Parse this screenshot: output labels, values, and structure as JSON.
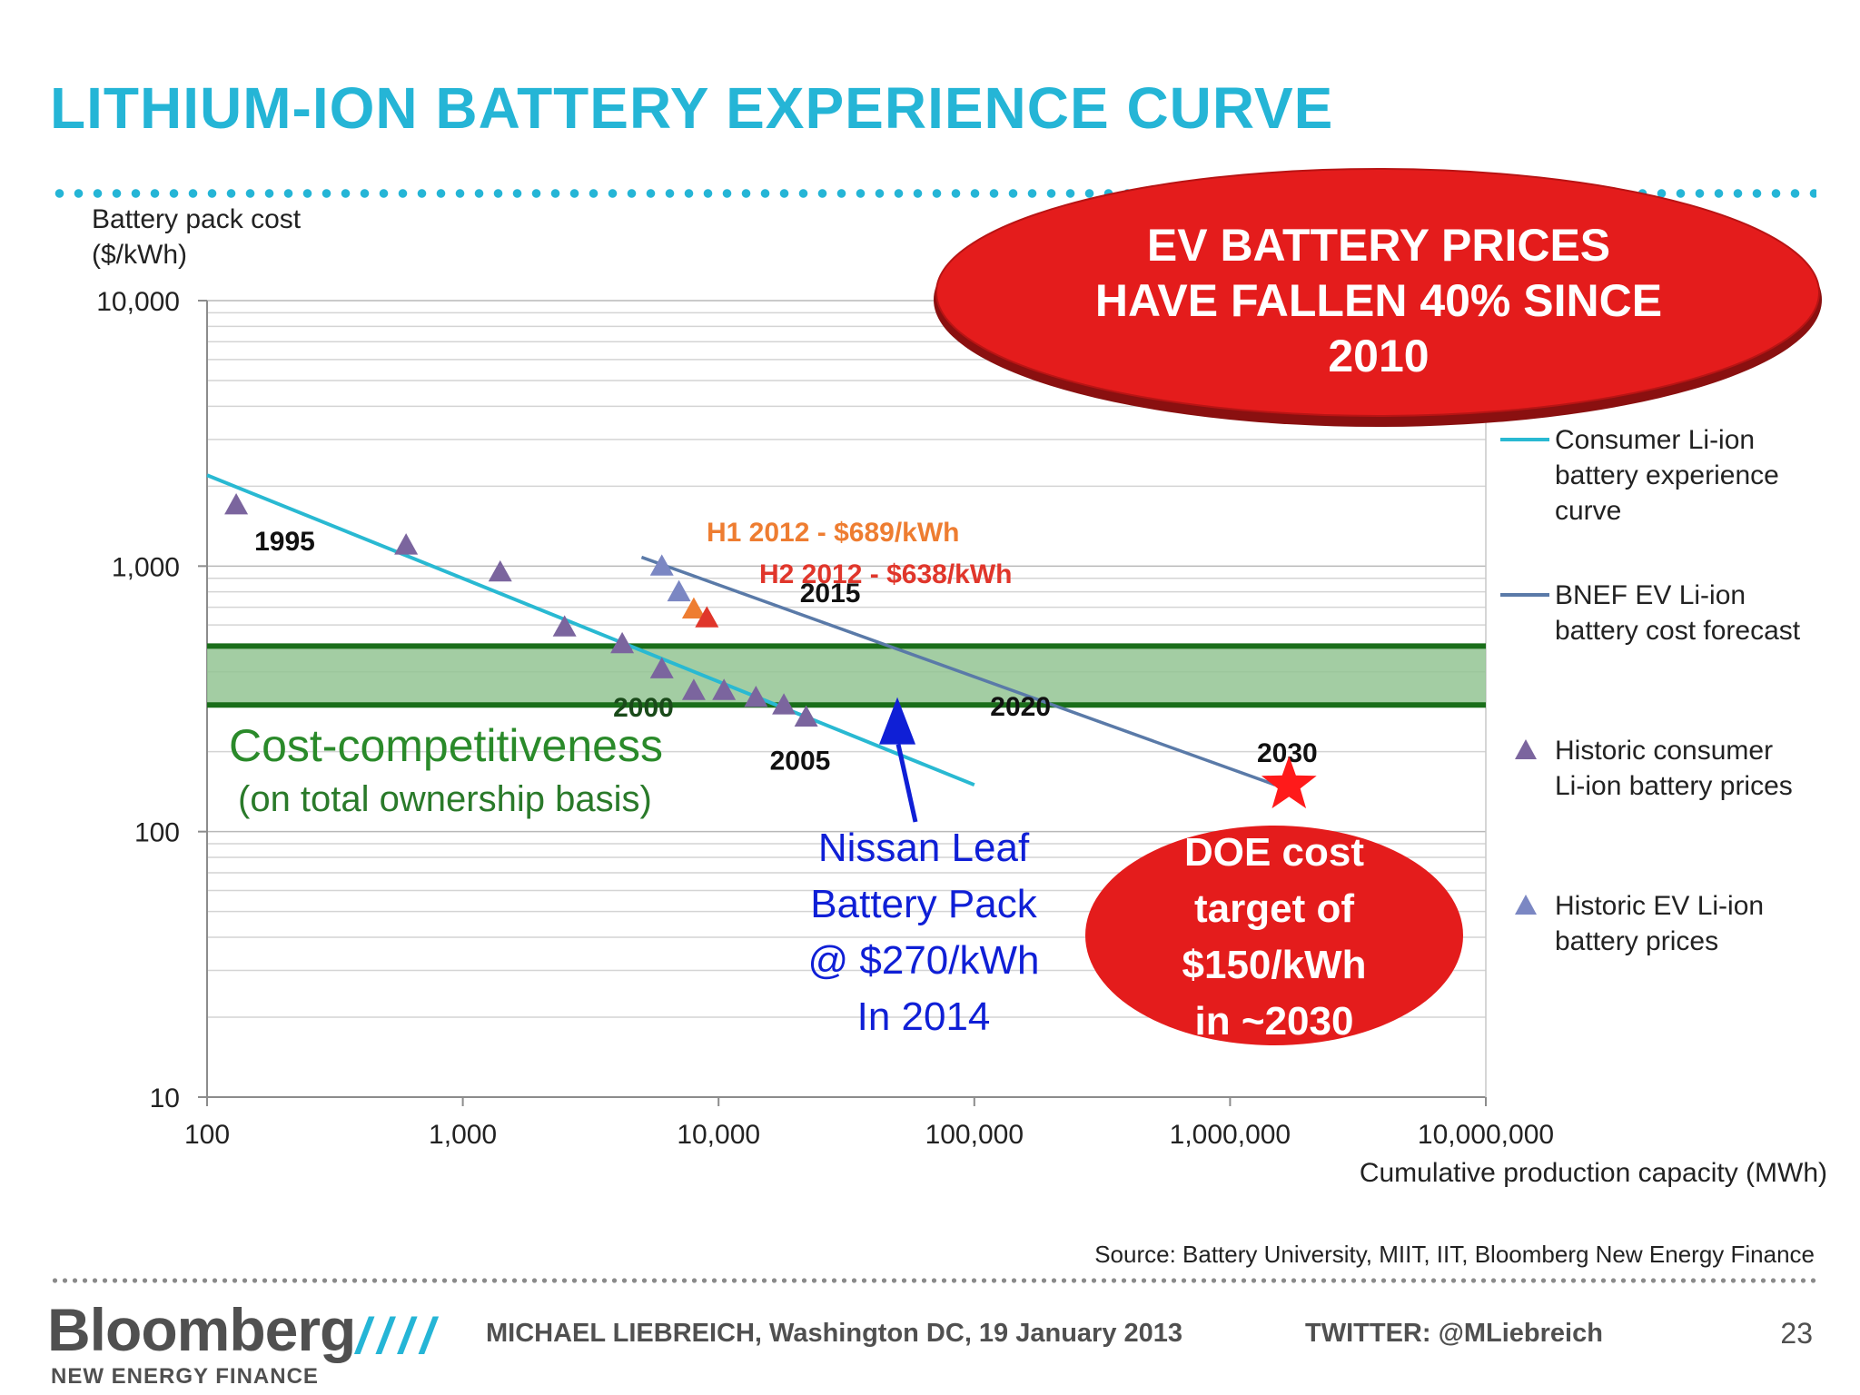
{
  "slide": {
    "title": "LITHIUM-ION BATTERY EXPERIENCE CURVE",
    "source": "Source: Battery University, MIIT, IIT, Bloomberg New Energy Finance",
    "page_number": "23"
  },
  "footer": {
    "logo": "Bloomberg",
    "logo_sub": "NEW ENERGY FINANCE",
    "slashes": "////",
    "author": "MICHAEL LIEBREICH, Washington DC, 19 January 2013",
    "twitter": "TWITTER: @MLiebreich"
  },
  "callouts": {
    "ev_prices": [
      "EV BATTERY PRICES",
      "HAVE FALLEN 40% SINCE",
      "2010"
    ],
    "doe_target": [
      "DOE cost",
      "target of",
      "$150/kWh",
      "in ~2030"
    ],
    "nissan": [
      "Nissan Leaf",
      "Battery Pack",
      "@ $270/kWh",
      "In 2014"
    ],
    "cost_band_title": "Cost-competitiveness",
    "cost_band_sub": "(on total ownership basis)"
  },
  "colors": {
    "title": "#25b5d6",
    "consumer_curve": "#29b9d2",
    "bnef_forecast": "#5a7aa8",
    "consumer_points": "#7b659e",
    "ev_points": "#7b87c3",
    "h1_2012": "#ee7d31",
    "h2_2012": "#e0362b",
    "band_fill": "#93c493",
    "band_edge": "#1a6e1a",
    "callout_red": "#e41c1c",
    "nissan_blue": "#0f1fd6"
  },
  "chart_data": {
    "type": "scatter",
    "xscale": "log",
    "yscale": "log",
    "xlim": [
      100,
      10000000
    ],
    "ylim": [
      10,
      10000
    ],
    "xlabel": "Cumulative production capacity (MWh)",
    "ylabel": [
      "Battery pack cost",
      "($/kWh)"
    ],
    "xticks": [
      "100",
      "1,000",
      "10,000",
      "100,000",
      "1,000,000",
      "10,000,000"
    ],
    "yticks": [
      "10",
      "100",
      "1,000",
      "10,000"
    ],
    "grid": true,
    "legend_position": "right",
    "series": [
      {
        "name": "Consumer Li-ion battery experience curve",
        "kind": "line",
        "points": [
          [
            100,
            2200
          ],
          [
            100000,
            150
          ]
        ]
      },
      {
        "name": "BNEF EV Li-ion battery cost forecast",
        "kind": "line",
        "points": [
          [
            5000,
            1080
          ],
          [
            1500000,
            150
          ]
        ]
      },
      {
        "name": "Historic consumer Li-ion battery prices",
        "kind": "scatter",
        "points": [
          [
            130,
            1700
          ],
          [
            600,
            1200
          ],
          [
            1400,
            950
          ],
          [
            2500,
            590
          ],
          [
            4200,
            510
          ],
          [
            6000,
            410
          ],
          [
            8000,
            340
          ],
          [
            10500,
            340
          ],
          [
            14000,
            320
          ],
          [
            18000,
            300
          ],
          [
            22000,
            270
          ]
        ]
      },
      {
        "name": "Historic EV Li-ion battery prices",
        "kind": "scatter",
        "points": [
          [
            6000,
            1000
          ],
          [
            7000,
            800
          ]
        ]
      }
    ],
    "legend": [
      {
        "label": [
          "Consumer Li-ion",
          "battery experience",
          "curve"
        ]
      },
      {
        "label": [
          "BNEF EV Li-ion",
          "battery cost forecast"
        ]
      },
      {
        "label": [
          "Historic consumer",
          "Li-ion battery prices"
        ]
      },
      {
        "label": [
          "Historic EV Li-ion",
          "battery prices"
        ]
      }
    ],
    "year_labels": [
      {
        "text": "1995",
        "x": 130,
        "y": 1700
      },
      {
        "text": "2000",
        "x": 4200,
        "y": 510
      },
      {
        "text": "2005",
        "x": 22000,
        "y": 270
      },
      {
        "text": "2015",
        "x": 40000,
        "y": 600
      },
      {
        "text": "2020",
        "x": 160000,
        "y": 320
      },
      {
        "text": "2030",
        "x": 1500000,
        "y": 150
      }
    ],
    "price_points": [
      {
        "label": "H1 2012 - $689/kWh",
        "x": 8000,
        "y": 689
      },
      {
        "label": "H2 2012 - $638/kWh",
        "x": 9000,
        "y": 638
      }
    ],
    "cost_band": {
      "ymin": 300,
      "ymax": 500
    },
    "nissan_point": {
      "x": 50000,
      "y": 270
    },
    "doe_target_point": {
      "x": 1700000,
      "y": 150
    }
  }
}
